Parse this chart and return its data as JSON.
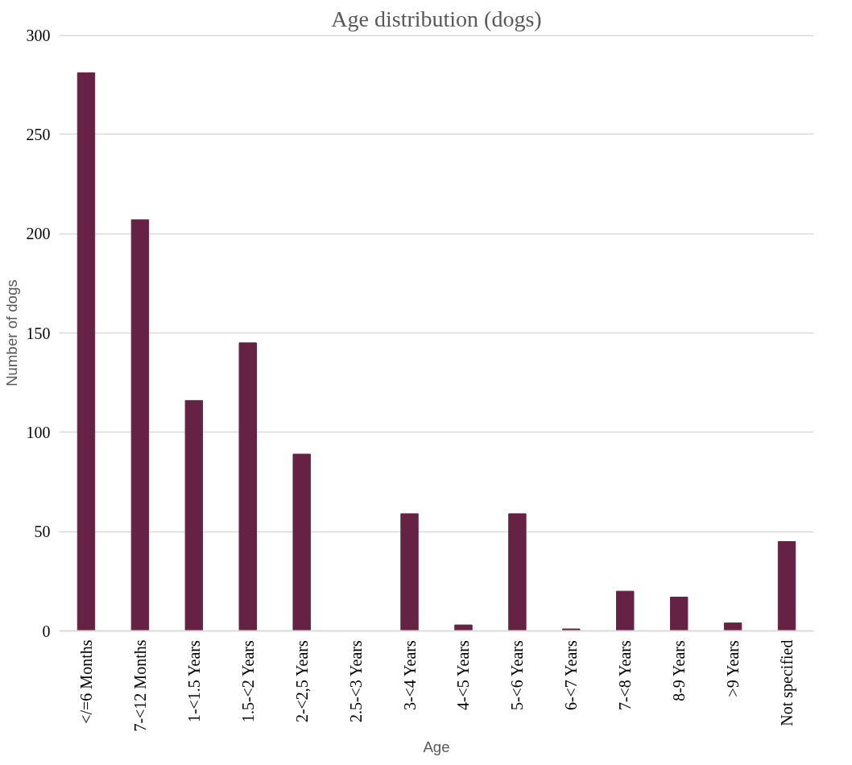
{
  "chart_data": {
    "type": "bar",
    "title": "Age distribution (dogs)",
    "xlabel": "Age",
    "ylabel": "Number of dogs",
    "categories": [
      "</=6 Months",
      "7-<12 Months",
      "1-<1.5 Years",
      "1.5-<2 Years",
      "2-<2,5 Years",
      "2.5-<3 Years",
      "3-<4 Years",
      "4-<5 Years",
      "5-<6 Years",
      "6-<7 Years",
      "7-<8 Years",
      "8-9 Years",
      ">9 Years",
      "Not specified"
    ],
    "values": [
      281,
      207,
      116,
      145,
      89,
      0,
      59,
      3,
      59,
      1,
      20,
      17,
      4,
      45
    ],
    "color": "#662244",
    "ylim": [
      0,
      300
    ],
    "yticks": [
      0,
      50,
      100,
      150,
      200,
      250,
      300
    ],
    "grid": "y"
  }
}
